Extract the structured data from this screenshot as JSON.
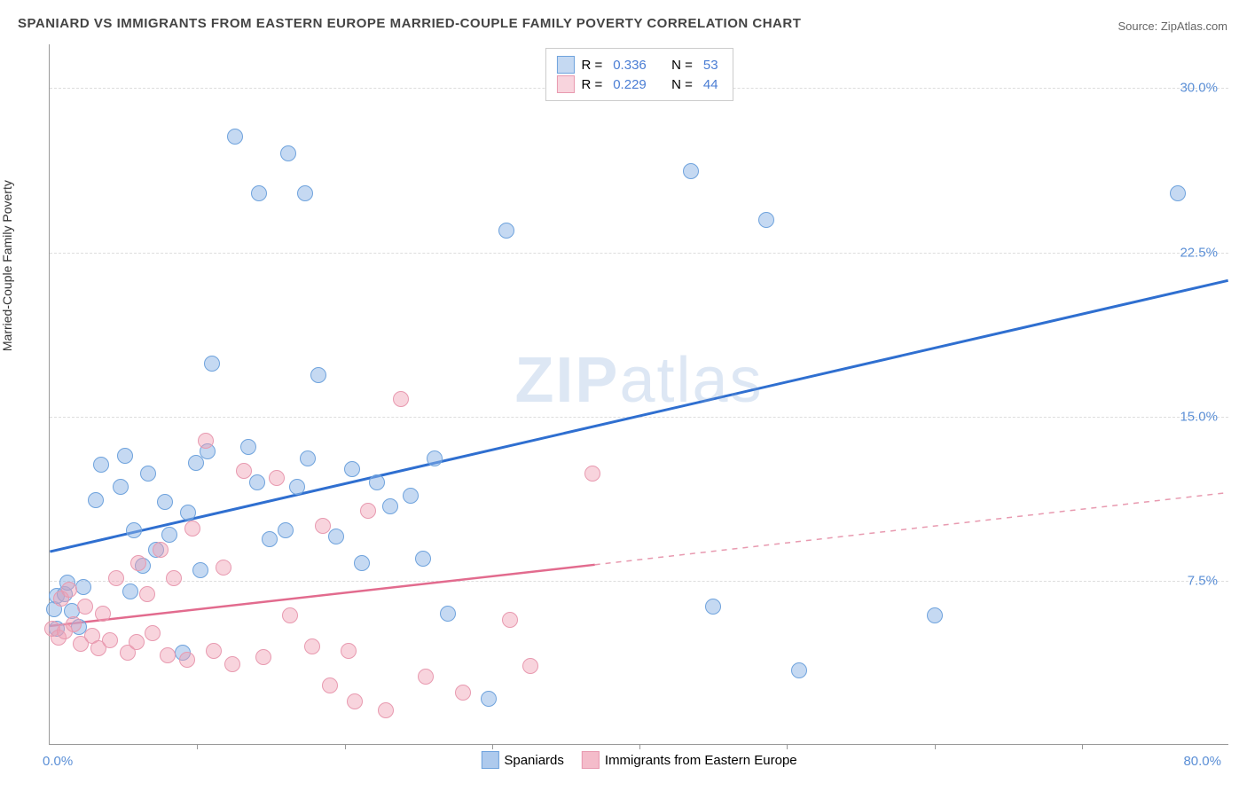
{
  "title": "SPANIARD VS IMMIGRANTS FROM EASTERN EUROPE MARRIED-COUPLE FAMILY POVERTY CORRELATION CHART",
  "source": "Source: ZipAtlas.com",
  "y_axis_label": "Married-Couple Family Poverty",
  "watermark_a": "ZIP",
  "watermark_b": "atlas",
  "chart": {
    "type": "scatter",
    "xlim": [
      0,
      80
    ],
    "ylim": [
      0,
      32
    ],
    "x_origin_label": "0.0%",
    "x_max_label": "80.0%",
    "x_ticks": [
      10,
      20,
      30,
      40,
      50,
      60,
      70
    ],
    "y_gridlines": [
      7.5,
      15.0,
      22.5,
      30.0
    ],
    "y_tick_labels": [
      "7.5%",
      "15.0%",
      "22.5%",
      "30.0%"
    ],
    "grid_color": "#dddddd",
    "axis_color": "#999999",
    "tick_label_color": "#5b8fd6",
    "background_color": "#ffffff"
  },
  "series": [
    {
      "name": "Spaniards",
      "fill_color": "rgba(140,180,230,0.5)",
      "stroke_color": "#6fa3dd",
      "marker_radius": 9,
      "R_label": "R =",
      "R_value": "0.336",
      "N_label": "N =",
      "N_value": "53",
      "trend": {
        "x1": 0,
        "y1": 8.8,
        "x2": 80,
        "y2": 21.2,
        "color": "#2f6fd0",
        "width": 3,
        "dash": "none"
      },
      "points": [
        [
          0.3,
          6.2
        ],
        [
          0.5,
          6.8
        ],
        [
          0.5,
          5.3
        ],
        [
          1.0,
          6.9
        ],
        [
          1.2,
          7.4
        ],
        [
          1.5,
          6.1
        ],
        [
          2.0,
          5.4
        ],
        [
          2.3,
          7.2
        ],
        [
          3.1,
          11.2
        ],
        [
          3.5,
          12.8
        ],
        [
          4.8,
          11.8
        ],
        [
          5.1,
          13.2
        ],
        [
          5.5,
          7.0
        ],
        [
          5.7,
          9.8
        ],
        [
          6.3,
          8.2
        ],
        [
          6.7,
          12.4
        ],
        [
          7.2,
          8.9
        ],
        [
          7.8,
          11.1
        ],
        [
          8.1,
          9.6
        ],
        [
          9.0,
          4.2
        ],
        [
          9.4,
          10.6
        ],
        [
          9.9,
          12.9
        ],
        [
          10.2,
          8.0
        ],
        [
          10.7,
          13.4
        ],
        [
          11.0,
          17.4
        ],
        [
          12.6,
          27.8
        ],
        [
          13.5,
          13.6
        ],
        [
          14.1,
          12.0
        ],
        [
          14.2,
          25.2
        ],
        [
          14.9,
          9.4
        ],
        [
          16.0,
          9.8
        ],
        [
          16.2,
          27.0
        ],
        [
          16.8,
          11.8
        ],
        [
          17.3,
          25.2
        ],
        [
          17.5,
          13.1
        ],
        [
          18.2,
          16.9
        ],
        [
          19.4,
          9.5
        ],
        [
          20.5,
          12.6
        ],
        [
          21.2,
          8.3
        ],
        [
          22.2,
          12.0
        ],
        [
          23.1,
          10.9
        ],
        [
          24.5,
          11.4
        ],
        [
          25.3,
          8.5
        ],
        [
          26.1,
          13.1
        ],
        [
          27.0,
          6.0
        ],
        [
          29.8,
          2.1
        ],
        [
          31.0,
          23.5
        ],
        [
          43.5,
          26.2
        ],
        [
          45.0,
          6.3
        ],
        [
          48.6,
          24.0
        ],
        [
          50.8,
          3.4
        ],
        [
          60.0,
          5.9
        ],
        [
          76.5,
          25.2
        ]
      ]
    },
    {
      "name": "Immigrants from Eastern Europe",
      "fill_color": "rgba(240,160,180,0.45)",
      "stroke_color": "#e89ab0",
      "marker_radius": 9,
      "R_label": "R =",
      "R_value": "0.229",
      "N_label": "N =",
      "N_value": "44",
      "trend_solid": {
        "x1": 0,
        "y1": 5.4,
        "x2": 37,
        "y2": 8.2,
        "color": "#e26b8e",
        "width": 2.5,
        "dash": "none"
      },
      "trend_dash": {
        "x1": 37,
        "y1": 8.2,
        "x2": 80,
        "y2": 11.5,
        "color": "#e89ab0",
        "width": 1.5,
        "dash": "6,6"
      },
      "points": [
        [
          0.2,
          5.3
        ],
        [
          0.6,
          4.9
        ],
        [
          0.8,
          6.7
        ],
        [
          1.0,
          5.2
        ],
        [
          1.3,
          7.1
        ],
        [
          1.6,
          5.5
        ],
        [
          2.1,
          4.6
        ],
        [
          2.4,
          6.3
        ],
        [
          2.9,
          5.0
        ],
        [
          3.3,
          4.4
        ],
        [
          3.6,
          6.0
        ],
        [
          4.1,
          4.8
        ],
        [
          4.5,
          7.6
        ],
        [
          5.3,
          4.2
        ],
        [
          5.9,
          4.7
        ],
        [
          6.0,
          8.3
        ],
        [
          6.6,
          6.9
        ],
        [
          7.0,
          5.1
        ],
        [
          7.5,
          8.9
        ],
        [
          8.0,
          4.1
        ],
        [
          8.4,
          7.6
        ],
        [
          9.3,
          3.9
        ],
        [
          9.7,
          9.9
        ],
        [
          10.6,
          13.9
        ],
        [
          11.1,
          4.3
        ],
        [
          11.8,
          8.1
        ],
        [
          12.4,
          3.7
        ],
        [
          13.2,
          12.5
        ],
        [
          14.5,
          4.0
        ],
        [
          15.4,
          12.2
        ],
        [
          16.3,
          5.9
        ],
        [
          17.8,
          4.5
        ],
        [
          18.5,
          10.0
        ],
        [
          19.0,
          2.7
        ],
        [
          20.3,
          4.3
        ],
        [
          20.7,
          2.0
        ],
        [
          21.6,
          10.7
        ],
        [
          22.8,
          1.6
        ],
        [
          23.8,
          15.8
        ],
        [
          25.5,
          3.1
        ],
        [
          28.0,
          2.4
        ],
        [
          31.2,
          5.7
        ],
        [
          32.6,
          3.6
        ],
        [
          36.8,
          12.4
        ]
      ]
    }
  ],
  "legend_bottom": [
    {
      "label": "Spaniards",
      "fill": "rgba(140,180,230,0.7)",
      "stroke": "#6fa3dd"
    },
    {
      "label": "Immigrants from Eastern Europe",
      "fill": "rgba(240,160,180,0.7)",
      "stroke": "#e89ab0"
    }
  ]
}
